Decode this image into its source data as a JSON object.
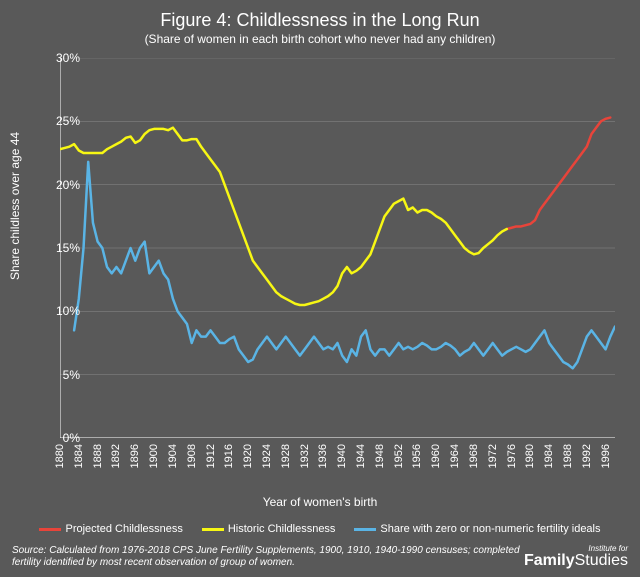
{
  "chart": {
    "type": "line",
    "title": "Figure 4: Childlessness in the Long Run",
    "subtitle": "(Share of women in each birth cohort who never had any children)",
    "ylabel": "Share childless over age 44",
    "xlabel": "Year of women's birth",
    "background_color": "#595959",
    "text_color": "#ffffff",
    "axis_color": "#ffffff",
    "gridline_color": "#8a8a8a",
    "title_fontsize": 18,
    "subtitle_fontsize": 12,
    "label_fontsize": 12,
    "tick_fontsize": 11,
    "xlim": [
      1880,
      1998
    ],
    "ylim": [
      0,
      30
    ],
    "ytick_step": 5,
    "ytick_labels": [
      "0%",
      "5%",
      "10%",
      "15%",
      "20%",
      "25%",
      "30%"
    ],
    "xtick_start": 1880,
    "xtick_step": 4,
    "xtick_end": 1996,
    "line_width": 2.5,
    "series": [
      {
        "name": "Projected Childlessness",
        "color": "#e8443a",
        "data": [
          [
            1975,
            16.5
          ],
          [
            1976,
            16.6
          ],
          [
            1977,
            16.7
          ],
          [
            1978,
            16.7
          ],
          [
            1979,
            16.8
          ],
          [
            1980,
            16.9
          ],
          [
            1981,
            17.2
          ],
          [
            1982,
            18.0
          ],
          [
            1983,
            18.5
          ],
          [
            1984,
            19.0
          ],
          [
            1985,
            19.5
          ],
          [
            1986,
            20.0
          ],
          [
            1987,
            20.5
          ],
          [
            1988,
            21.0
          ],
          [
            1989,
            21.5
          ],
          [
            1990,
            22.0
          ],
          [
            1991,
            22.5
          ],
          [
            1992,
            23.0
          ],
          [
            1993,
            24.0
          ],
          [
            1994,
            24.5
          ],
          [
            1995,
            25.0
          ],
          [
            1996,
            25.2
          ],
          [
            1997,
            25.3
          ]
        ]
      },
      {
        "name": "Historic Childlessness",
        "color": "#f7f714",
        "data": [
          [
            1880,
            22.8
          ],
          [
            1881,
            22.9
          ],
          [
            1882,
            23.0
          ],
          [
            1883,
            23.2
          ],
          [
            1884,
            22.7
          ],
          [
            1885,
            22.5
          ],
          [
            1886,
            22.5
          ],
          [
            1887,
            22.5
          ],
          [
            1888,
            22.5
          ],
          [
            1889,
            22.5
          ],
          [
            1890,
            22.8
          ],
          [
            1891,
            23.0
          ],
          [
            1892,
            23.2
          ],
          [
            1893,
            23.4
          ],
          [
            1894,
            23.7
          ],
          [
            1895,
            23.8
          ],
          [
            1896,
            23.3
          ],
          [
            1897,
            23.5
          ],
          [
            1898,
            24.0
          ],
          [
            1899,
            24.3
          ],
          [
            1900,
            24.4
          ],
          [
            1901,
            24.4
          ],
          [
            1902,
            24.4
          ],
          [
            1903,
            24.3
          ],
          [
            1904,
            24.5
          ],
          [
            1905,
            24.0
          ],
          [
            1906,
            23.5
          ],
          [
            1907,
            23.5
          ],
          [
            1908,
            23.6
          ],
          [
            1909,
            23.6
          ],
          [
            1910,
            23.0
          ],
          [
            1911,
            22.5
          ],
          [
            1912,
            22.0
          ],
          [
            1913,
            21.5
          ],
          [
            1914,
            21.0
          ],
          [
            1915,
            20.0
          ],
          [
            1916,
            19.0
          ],
          [
            1917,
            18.0
          ],
          [
            1918,
            17.0
          ],
          [
            1919,
            16.0
          ],
          [
            1920,
            15.0
          ],
          [
            1921,
            14.0
          ],
          [
            1922,
            13.5
          ],
          [
            1923,
            13.0
          ],
          [
            1924,
            12.5
          ],
          [
            1925,
            12.0
          ],
          [
            1926,
            11.5
          ],
          [
            1927,
            11.2
          ],
          [
            1928,
            11.0
          ],
          [
            1929,
            10.8
          ],
          [
            1930,
            10.6
          ],
          [
            1931,
            10.5
          ],
          [
            1932,
            10.5
          ],
          [
            1933,
            10.6
          ],
          [
            1934,
            10.7
          ],
          [
            1935,
            10.8
          ],
          [
            1936,
            11.0
          ],
          [
            1937,
            11.2
          ],
          [
            1938,
            11.5
          ],
          [
            1939,
            12.0
          ],
          [
            1940,
            13.0
          ],
          [
            1941,
            13.5
          ],
          [
            1942,
            13.0
          ],
          [
            1943,
            13.2
          ],
          [
            1944,
            13.5
          ],
          [
            1945,
            14.0
          ],
          [
            1946,
            14.5
          ],
          [
            1947,
            15.5
          ],
          [
            1948,
            16.5
          ],
          [
            1949,
            17.5
          ],
          [
            1950,
            18.0
          ],
          [
            1951,
            18.5
          ],
          [
            1952,
            18.7
          ],
          [
            1953,
            18.9
          ],
          [
            1954,
            18.0
          ],
          [
            1955,
            18.2
          ],
          [
            1956,
            17.8
          ],
          [
            1957,
            18.0
          ],
          [
            1958,
            18.0
          ],
          [
            1959,
            17.8
          ],
          [
            1960,
            17.5
          ],
          [
            1961,
            17.3
          ],
          [
            1962,
            17.0
          ],
          [
            1963,
            16.5
          ],
          [
            1964,
            16.0
          ],
          [
            1965,
            15.5
          ],
          [
            1966,
            15.0
          ],
          [
            1967,
            14.7
          ],
          [
            1968,
            14.5
          ],
          [
            1969,
            14.6
          ],
          [
            1970,
            15.0
          ],
          [
            1971,
            15.3
          ],
          [
            1972,
            15.6
          ],
          [
            1973,
            16.0
          ],
          [
            1974,
            16.3
          ],
          [
            1975,
            16.5
          ]
        ]
      },
      {
        "name": "Share with zero or non-numeric fertility ideals",
        "color": "#5ab4e5",
        "data": [
          [
            1883,
            8.5
          ],
          [
            1884,
            11.0
          ],
          [
            1885,
            15.0
          ],
          [
            1886,
            21.8
          ],
          [
            1887,
            17.0
          ],
          [
            1888,
            15.5
          ],
          [
            1889,
            15.0
          ],
          [
            1890,
            13.5
          ],
          [
            1891,
            13.0
          ],
          [
            1892,
            13.5
          ],
          [
            1893,
            13.0
          ],
          [
            1894,
            14.0
          ],
          [
            1895,
            15.0
          ],
          [
            1896,
            14.0
          ],
          [
            1897,
            15.0
          ],
          [
            1898,
            15.5
          ],
          [
            1899,
            13.0
          ],
          [
            1900,
            13.5
          ],
          [
            1901,
            14.0
          ],
          [
            1902,
            13.0
          ],
          [
            1903,
            12.5
          ],
          [
            1904,
            11.0
          ],
          [
            1905,
            10.0
          ],
          [
            1906,
            9.5
          ],
          [
            1907,
            9.0
          ],
          [
            1908,
            7.5
          ],
          [
            1909,
            8.5
          ],
          [
            1910,
            8.0
          ],
          [
            1911,
            8.0
          ],
          [
            1912,
            8.5
          ],
          [
            1913,
            8.0
          ],
          [
            1914,
            7.5
          ],
          [
            1915,
            7.5
          ],
          [
            1916,
            7.8
          ],
          [
            1917,
            8.0
          ],
          [
            1918,
            7.0
          ],
          [
            1919,
            6.5
          ],
          [
            1920,
            6.0
          ],
          [
            1921,
            6.2
          ],
          [
            1922,
            7.0
          ],
          [
            1923,
            7.5
          ],
          [
            1924,
            8.0
          ],
          [
            1925,
            7.5
          ],
          [
            1926,
            7.0
          ],
          [
            1927,
            7.5
          ],
          [
            1928,
            8.0
          ],
          [
            1929,
            7.5
          ],
          [
            1930,
            7.0
          ],
          [
            1931,
            6.5
          ],
          [
            1932,
            7.0
          ],
          [
            1933,
            7.5
          ],
          [
            1934,
            8.0
          ],
          [
            1935,
            7.5
          ],
          [
            1936,
            7.0
          ],
          [
            1937,
            7.2
          ],
          [
            1938,
            7.0
          ],
          [
            1939,
            7.5
          ],
          [
            1940,
            6.5
          ],
          [
            1941,
            6.0
          ],
          [
            1942,
            7.0
          ],
          [
            1943,
            6.5
          ],
          [
            1944,
            8.0
          ],
          [
            1945,
            8.5
          ],
          [
            1946,
            7.0
          ],
          [
            1947,
            6.5
          ],
          [
            1948,
            7.0
          ],
          [
            1949,
            7.0
          ],
          [
            1950,
            6.5
          ],
          [
            1951,
            7.0
          ],
          [
            1952,
            7.5
          ],
          [
            1953,
            7.0
          ],
          [
            1954,
            7.2
          ],
          [
            1955,
            7.0
          ],
          [
            1956,
            7.2
          ],
          [
            1957,
            7.5
          ],
          [
            1958,
            7.3
          ],
          [
            1959,
            7.0
          ],
          [
            1960,
            7.0
          ],
          [
            1961,
            7.2
          ],
          [
            1962,
            7.5
          ],
          [
            1963,
            7.3
          ],
          [
            1964,
            7.0
          ],
          [
            1965,
            6.5
          ],
          [
            1966,
            6.8
          ],
          [
            1967,
            7.0
          ],
          [
            1968,
            7.5
          ],
          [
            1969,
            7.0
          ],
          [
            1970,
            6.5
          ],
          [
            1971,
            7.0
          ],
          [
            1972,
            7.5
          ],
          [
            1973,
            7.0
          ],
          [
            1974,
            6.5
          ],
          [
            1975,
            6.8
          ],
          [
            1976,
            7.0
          ],
          [
            1977,
            7.2
          ],
          [
            1978,
            7.0
          ],
          [
            1979,
            6.8
          ],
          [
            1980,
            7.0
          ],
          [
            1981,
            7.5
          ],
          [
            1982,
            8.0
          ],
          [
            1983,
            8.5
          ],
          [
            1984,
            7.5
          ],
          [
            1985,
            7.0
          ],
          [
            1986,
            6.5
          ],
          [
            1987,
            6.0
          ],
          [
            1988,
            5.8
          ],
          [
            1989,
            5.5
          ],
          [
            1990,
            6.0
          ],
          [
            1991,
            7.0
          ],
          [
            1992,
            8.0
          ],
          [
            1993,
            8.5
          ],
          [
            1994,
            8.0
          ],
          [
            1995,
            7.5
          ],
          [
            1996,
            7.0
          ],
          [
            1997,
            8.0
          ],
          [
            1998,
            8.8
          ]
        ]
      }
    ],
    "source": "Source: Calculated from 1976-2018 CPS June Fertility Supplements, 1900, 1910, 1940-1990 censuses; completed fertility identified by most recent observation of group of women.",
    "logo": {
      "top": "Institute for",
      "bold": "Family",
      "light": "Studies"
    }
  }
}
